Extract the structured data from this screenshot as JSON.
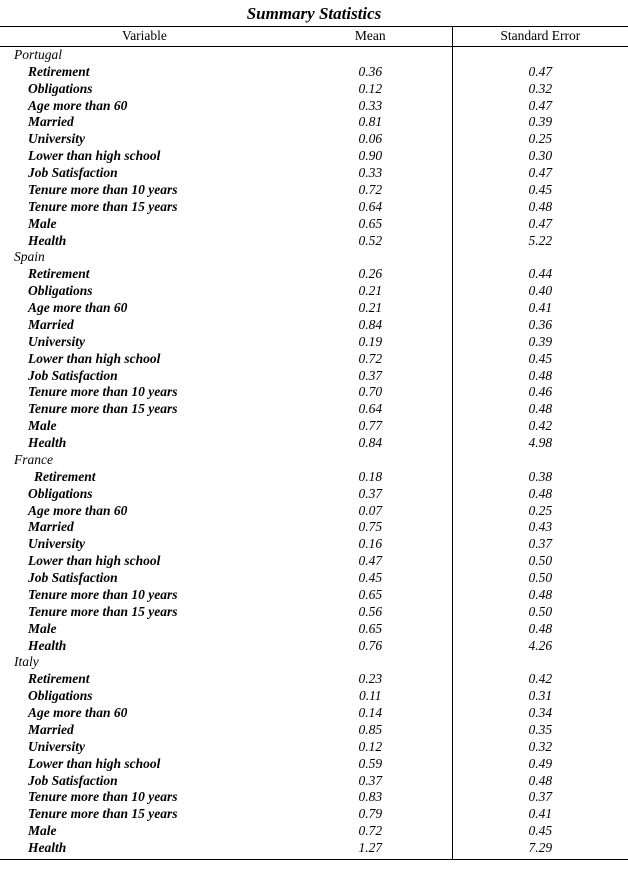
{
  "title": "Summary Statistics",
  "headers": {
    "variable": "Variable",
    "mean": "Mean",
    "se": "Standard  Error"
  },
  "countries": [
    {
      "name": "Portugal",
      "rows": [
        {
          "label": "Retirement",
          "mean": "0.36",
          "se": "0.47"
        },
        {
          "label": "Obligations",
          "mean": "0.12",
          "se": "0.32"
        },
        {
          "label": "Age more than 60",
          "mean": "0.33",
          "se": "0.47"
        },
        {
          "label": "Married",
          "mean": "0.81",
          "se": "0.39"
        },
        {
          "label": "University",
          "mean": "0.06",
          "se": "0.25"
        },
        {
          "label": "Lower than high school",
          "mean": "0.90",
          "se": "0.30"
        },
        {
          "label": "Job Satisfaction",
          "mean": "0.33",
          "se": "0.47"
        },
        {
          "label": "Tenure more than 10 years",
          "mean": "0.72",
          "se": "0.45"
        },
        {
          "label": "Tenure more than 15 years",
          "mean": "0.64",
          "se": "0.48"
        },
        {
          "label": "Male",
          "mean": "0.65",
          "se": "0.47"
        },
        {
          "label": "Health",
          "mean": "0.52",
          "se": "5.22"
        }
      ]
    },
    {
      "name": "Spain",
      "rows": [
        {
          "label": "Retirement",
          "mean": "0.26",
          "se": "0.44"
        },
        {
          "label": "Obligations",
          "mean": "0.21",
          "se": "0.40"
        },
        {
          "label": "Age more than 60",
          "mean": "0.21",
          "se": "0.41"
        },
        {
          "label": "Married",
          "mean": "0.84",
          "se": "0.36"
        },
        {
          "label": "University",
          "mean": "0.19",
          "se": "0.39"
        },
        {
          "label": "Lower than high school",
          "mean": "0.72",
          "se": "0.45"
        },
        {
          "label": "Job Satisfaction",
          "mean": "0.37",
          "se": "0.48"
        },
        {
          "label": "Tenure more than 10 years",
          "mean": "0.70",
          "se": "0.46"
        },
        {
          "label": "Tenure more than 15 years",
          "mean": "0.64",
          "se": "0.48"
        },
        {
          "label": "Male",
          "mean": "0.77",
          "se": "0.42"
        },
        {
          "label": "Health",
          "mean": "0.84",
          "se": "4.98"
        }
      ]
    },
    {
      "name": "France",
      "rows": [
        {
          "label": "Retirement",
          "mean": "0.18",
          "se": "0.38",
          "extra": true
        },
        {
          "label": "Obligations",
          "mean": "0.37",
          "se": "0.48"
        },
        {
          "label": "Age more than 60",
          "mean": "0.07",
          "se": "0.25"
        },
        {
          "label": "Married",
          "mean": "0.75",
          "se": "0.43"
        },
        {
          "label": "University",
          "mean": "0.16",
          "se": "0.37"
        },
        {
          "label": "Lower than high school",
          "mean": "0.47",
          "se": "0.50"
        },
        {
          "label": "Job Satisfaction",
          "mean": "0.45",
          "se": "0.50"
        },
        {
          "label": "Tenure more than 10 years",
          "mean": "0.65",
          "se": "0.48"
        },
        {
          "label": "Tenure more than 15 years",
          "mean": "0.56",
          "se": "0.50"
        },
        {
          "label": "Male",
          "mean": "0.65",
          "se": "0.48"
        },
        {
          "label": "Health",
          "mean": "0.76",
          "se": "4.26"
        }
      ]
    },
    {
      "name": "Italy",
      "rows": [
        {
          "label": "Retirement",
          "mean": "0.23",
          "se": "0.42"
        },
        {
          "label": "Obligations",
          "mean": "0.11",
          "se": "0.31"
        },
        {
          "label": "Age more than 60",
          "mean": "0.14",
          "se": "0.34"
        },
        {
          "label": "Married",
          "mean": "0.85",
          "se": "0.35"
        },
        {
          "label": "University",
          "mean": "0.12",
          "se": "0.32"
        },
        {
          "label": "Lower than high school",
          "mean": "0.59",
          "se": "0.49"
        },
        {
          "label": "Job Satisfaction",
          "mean": "0.37",
          "se": "0.48"
        },
        {
          "label": "Tenure more than 10 years",
          "mean": "0.83",
          "se": "0.37"
        },
        {
          "label": "Tenure more than 15 years",
          "mean": "0.79",
          "se": "0.41"
        },
        {
          "label": "Male",
          "mean": "0.72",
          "se": "0.45"
        },
        {
          "label": "Health",
          "mean": "1.27",
          "se": "7.29"
        }
      ]
    }
  ]
}
